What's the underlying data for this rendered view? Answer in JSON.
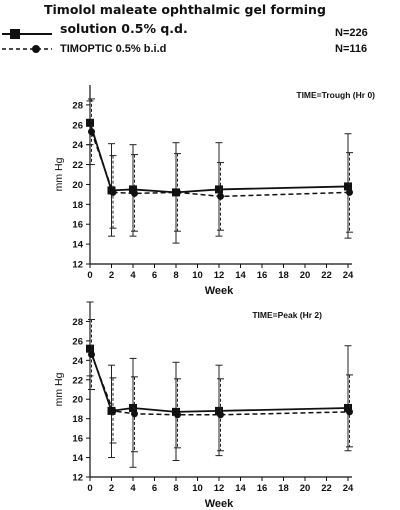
{
  "legend": {
    "series1_label_line1": "Timolol maleate ophthalmic gel forming",
    "series1_label_line2": "solution 0.5% q.d.",
    "series1_n": "N=226",
    "series2_label": "TIMOPTIC 0.5% b.i.d",
    "series2_n": "N=116"
  },
  "chart_data": [
    {
      "type": "line",
      "title": "TIME=Trough (Hr 0)",
      "xlabel": "Week",
      "ylabel": "mm Hg",
      "x": [
        0,
        2,
        4,
        8,
        12,
        24
      ],
      "xticks": [
        0,
        2,
        4,
        6,
        8,
        10,
        12,
        14,
        16,
        18,
        20,
        22,
        24
      ],
      "yticks": [
        12,
        14,
        16,
        18,
        20,
        22,
        24,
        26,
        28
      ],
      "xlim": [
        0,
        24
      ],
      "ylim": [
        12,
        30
      ],
      "grid": false,
      "error_bars": true,
      "series": [
        {
          "name": "Timolol maleate ophthalmic gel forming solution 0.5% q.d.",
          "style": "solid",
          "marker": "square",
          "color": "#111111",
          "values": [
            26.2,
            19.4,
            19.5,
            19.2,
            19.5,
            19.8
          ],
          "err_low": [
            24.0,
            14.8,
            14.8,
            14.1,
            14.8,
            14.6
          ],
          "err_high": [
            28.4,
            24.1,
            24.0,
            24.2,
            24.2,
            25.1
          ]
        },
        {
          "name": "TIMOPTIC 0.5% b.i.d",
          "style": "dashed",
          "marker": "circle",
          "color": "#111111",
          "values": [
            25.3,
            19.2,
            19.1,
            19.2,
            18.8,
            19.2
          ],
          "err_low": [
            22.0,
            15.6,
            15.3,
            15.3,
            15.4,
            15.2
          ],
          "err_high": [
            28.6,
            22.9,
            23.0,
            23.1,
            22.2,
            23.2
          ]
        }
      ]
    },
    {
      "type": "line",
      "title": "TIME=Peak (Hr 2)",
      "xlabel": "Week",
      "ylabel": "mm Hg",
      "x": [
        0,
        2,
        4,
        8,
        12,
        24
      ],
      "xticks": [
        0,
        2,
        4,
        6,
        8,
        10,
        12,
        14,
        16,
        18,
        20,
        22,
        24
      ],
      "yticks": [
        12,
        14,
        16,
        18,
        20,
        22,
        24,
        26,
        28
      ],
      "xlim": [
        0,
        24
      ],
      "ylim": [
        12,
        30
      ],
      "grid": false,
      "error_bars": true,
      "series": [
        {
          "name": "Timolol maleate ophthalmic gel forming solution 0.5% q.d.",
          "style": "solid",
          "marker": "square",
          "color": "#111111",
          "values": [
            25.2,
            18.8,
            19.1,
            18.7,
            18.8,
            19.1
          ],
          "err_low": [
            22.4,
            14.0,
            13.0,
            13.7,
            14.2,
            14.7
          ],
          "err_high": [
            30.0,
            23.5,
            24.2,
            23.8,
            23.5,
            25.5
          ]
        },
        {
          "name": "TIMOPTIC 0.5% b.i.d",
          "style": "dashed",
          "marker": "circle",
          "color": "#111111",
          "values": [
            24.6,
            18.8,
            18.5,
            18.4,
            18.4,
            18.7
          ],
          "err_low": [
            21.0,
            15.5,
            14.6,
            15.0,
            14.7,
            15.1
          ],
          "err_high": [
            28.2,
            22.2,
            22.3,
            22.1,
            22.1,
            22.5
          ]
        }
      ]
    }
  ]
}
